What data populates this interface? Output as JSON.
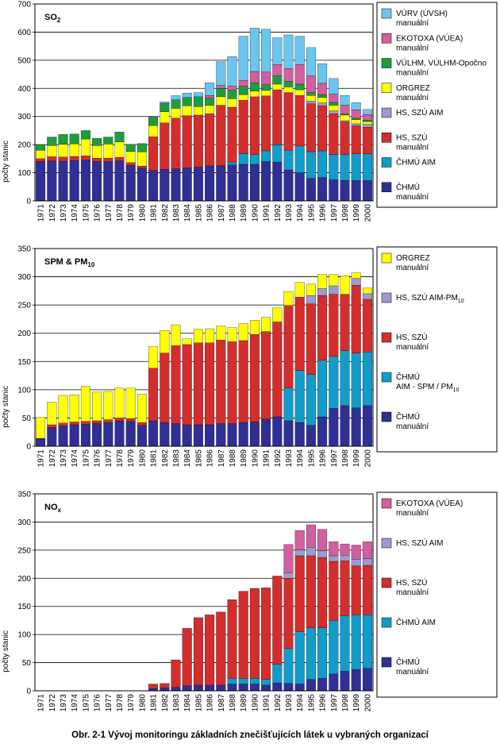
{
  "caption": "Obr. 2-1  Vývoj monitoringu základních znečišťujících látek u vybraných organizací",
  "colors": {
    "chmu_manual": "#2f2f96",
    "chmu_aim": "#119cc9",
    "hs_szu_manual": "#d42d2d",
    "hs_szu_aim": "#9b9bd0",
    "orgrez": "#ffff00",
    "vulhm": "#1f9d3d",
    "ekotoxa": "#d25f9e",
    "vurv": "#6bc6ef"
  },
  "chart_data": [
    {
      "type": "bar",
      "stacked": true,
      "title": "SO",
      "title_sub": "2",
      "ylabel": "počty stanic",
      "ylim": [
        0,
        700
      ],
      "yticks": [
        0,
        100,
        200,
        300,
        400,
        500,
        600,
        700
      ],
      "grid": true,
      "legend_position": "right",
      "categories": [
        "1971",
        "1972",
        "1973",
        "1974",
        "1975",
        "1976",
        "1977",
        "1978",
        "1979",
        "1980",
        "1981",
        "1982",
        "1983",
        "1984",
        "1985",
        "1986",
        "1987",
        "1988",
        "1989",
        "1990",
        "1991",
        "1992",
        "1993",
        "1994",
        "1995",
        "1996",
        "1997",
        "1998",
        "1999",
        "2000"
      ],
      "series": [
        {
          "key": "chmu_manual",
          "name": "ČHMÚ",
          "name2": "manuální",
          "values": [
            140,
            142,
            141,
            143,
            145,
            140,
            140,
            142,
            126,
            116,
            108,
            112,
            114,
            118,
            120,
            125,
            125,
            128,
            130,
            130,
            140,
            138,
            110,
            100,
            80,
            83,
            75,
            73,
            72,
            72
          ]
        },
        {
          "key": "chmu_aim",
          "name": "ČHMÚ  AIM",
          "name2": "",
          "values": [
            0,
            0,
            0,
            0,
            0,
            0,
            0,
            0,
            0,
            0,
            0,
            0,
            0,
            0,
            0,
            0,
            0,
            10,
            38,
            35,
            38,
            62,
            70,
            95,
            95,
            95,
            90,
            92,
            95,
            95
          ]
        },
        {
          "key": "hs_szu_manual",
          "name": "HS, SZÚ",
          "name2": "manuální",
          "values": [
            10,
            15,
            15,
            15,
            15,
            12,
            12,
            13,
            10,
            8,
            120,
            165,
            180,
            185,
            185,
            185,
            215,
            195,
            190,
            205,
            195,
            195,
            205,
            180,
            170,
            160,
            145,
            115,
            100,
            95
          ]
        },
        {
          "key": "hs_szu_aim",
          "name": "HS, SZÚ AIM",
          "name2": "",
          "values": [
            0,
            0,
            0,
            0,
            0,
            0,
            0,
            0,
            0,
            0,
            0,
            0,
            0,
            0,
            0,
            0,
            0,
            0,
            0,
            0,
            0,
            0,
            0,
            0,
            10,
            10,
            10,
            5,
            7,
            10
          ]
        },
        {
          "key": "orgrez",
          "name": "ORGREZ",
          "name2": "manuální",
          "values": [
            30,
            40,
            45,
            45,
            60,
            45,
            50,
            55,
            40,
            50,
            40,
            40,
            35,
            35,
            30,
            30,
            30,
            30,
            20,
            20,
            20,
            20,
            20,
            20,
            20,
            20,
            20,
            20,
            15,
            10
          ]
        },
        {
          "key": "vulhm",
          "name": "VÚLHM, VÚLHM-Opočno",
          "name2": "manuální",
          "values": [
            20,
            30,
            35,
            35,
            30,
            25,
            25,
            35,
            25,
            30,
            30,
            30,
            30,
            30,
            35,
            25,
            30,
            30,
            30,
            30,
            20,
            30,
            20,
            20,
            10,
            10,
            10,
            5,
            5,
            5
          ]
        },
        {
          "key": "ekotoxa",
          "name": "EKOTOXA (VÚEA)",
          "name2": "manuální",
          "values": [
            0,
            0,
            0,
            0,
            0,
            0,
            0,
            0,
            0,
            0,
            0,
            0,
            0,
            0,
            0,
            10,
            10,
            15,
            20,
            40,
            45,
            40,
            45,
            70,
            60,
            40,
            30,
            30,
            30,
            20
          ]
        },
        {
          "key": "vurv",
          "name": "VÚRV (ÚVSH)",
          "name2": "manuální",
          "values": [
            0,
            0,
            0,
            0,
            0,
            0,
            0,
            0,
            0,
            0,
            0,
            5,
            15,
            15,
            15,
            45,
            85,
            105,
            157,
            154,
            152,
            95,
            120,
            100,
            100,
            70,
            55,
            35,
            25,
            18
          ]
        }
      ],
      "legend_order": [
        "vurv",
        "ekotoxa",
        "vulhm",
        "orgrez",
        "hs_szu_aim",
        "hs_szu_manual",
        "chmu_aim",
        "chmu_manual"
      ]
    },
    {
      "type": "bar",
      "stacked": true,
      "title": "SPM & PM",
      "title_sub": "10",
      "ylabel": "počty stanic",
      "ylim": [
        0,
        350
      ],
      "yticks": [
        0,
        50,
        100,
        150,
        200,
        250,
        300,
        350
      ],
      "grid": true,
      "legend_position": "right",
      "categories": [
        "1971",
        "1972",
        "1973",
        "1974",
        "1975",
        "1976",
        "1977",
        "1978",
        "1979",
        "1980",
        "1981",
        "1982",
        "1983",
        "1984",
        "1985",
        "1986",
        "1987",
        "1988",
        "1989",
        "1990",
        "1991",
        "1992",
        "1993",
        "1994",
        "1995",
        "1996",
        "1997",
        "1998",
        "1999",
        "2000"
      ],
      "series": [
        {
          "key": "chmu_manual",
          "name": "ČHMÚ",
          "name2": "manuální",
          "values": [
            14,
            33,
            36,
            38,
            39,
            40,
            42,
            45,
            44,
            37,
            45,
            42,
            40,
            38,
            38,
            38,
            40,
            40,
            42,
            43,
            48,
            52,
            45,
            42,
            37,
            52,
            67,
            72,
            68,
            72
          ]
        },
        {
          "key": "chmu_aim",
          "name": "ČHMÚ",
          "name2": "AIM - SPM / PM",
          "name2_sub": "10",
          "values": [
            0,
            0,
            0,
            0,
            0,
            0,
            0,
            0,
            0,
            0,
            0,
            0,
            0,
            0,
            0,
            0,
            0,
            0,
            0,
            0,
            0,
            0,
            58,
            92,
            90,
            100,
            92,
            97,
            97,
            95
          ]
        },
        {
          "key": "hs_szu_manual",
          "name": "HS, SZÚ",
          "name2": "manuální",
          "values": [
            0,
            5,
            5,
            5,
            5,
            5,
            5,
            5,
            5,
            5,
            93,
            123,
            138,
            142,
            145,
            145,
            148,
            145,
            145,
            155,
            155,
            168,
            146,
            130,
            125,
            115,
            110,
            100,
            120,
            93
          ]
        },
        {
          "key": "hs_szu_aim",
          "name": "HS, SZÚ AIM-PM",
          "name2": "",
          "name_sub": "10",
          "values": [
            0,
            0,
            0,
            0,
            0,
            0,
            0,
            0,
            0,
            0,
            0,
            0,
            0,
            0,
            0,
            0,
            0,
            0,
            0,
            0,
            0,
            0,
            0,
            0,
            15,
            12,
            15,
            0,
            12,
            10
          ]
        },
        {
          "key": "orgrez",
          "name": "ORGREZ",
          "name2": "manuální",
          "values": [
            37,
            40,
            49,
            48,
            62,
            51,
            50,
            53,
            54,
            50,
            38,
            40,
            37,
            10,
            24,
            25,
            25,
            25,
            30,
            25,
            25,
            25,
            25,
            26,
            20,
            25,
            20,
            33,
            10,
            10
          ]
        }
      ],
      "legend_order": [
        "orgrez",
        "hs_szu_aim",
        "hs_szu_manual",
        "chmu_aim",
        "chmu_manual"
      ]
    },
    {
      "type": "bar",
      "stacked": true,
      "title": "NO",
      "title_sub": "x",
      "ylabel": "počty stanic",
      "ylim": [
        0,
        350
      ],
      "yticks": [
        0,
        50,
        100,
        150,
        200,
        250,
        300,
        350
      ],
      "grid": true,
      "legend_position": "right",
      "categories": [
        "1971",
        "1972",
        "1973",
        "1974",
        "1975",
        "1976",
        "1977",
        "1978",
        "1979",
        "1980",
        "1981",
        "1982",
        "1983",
        "1984",
        "1985",
        "1986",
        "1987",
        "1988",
        "1989",
        "1990",
        "1991",
        "1992",
        "1993",
        "1994",
        "1995",
        "1996",
        "1997",
        "1998",
        "1999",
        "2000"
      ],
      "series": [
        {
          "key": "chmu_manual",
          "name": "ČHMÚ",
          "name2": "manuální",
          "values": [
            0,
            0,
            0,
            0,
            0,
            0,
            0,
            0,
            0,
            0,
            4,
            5,
            6,
            9,
            10,
            10,
            10,
            12,
            12,
            12,
            10,
            14,
            13,
            12,
            20,
            22,
            30,
            35,
            38,
            40
          ]
        },
        {
          "key": "chmu_aim",
          "name": "ČHMÚ  AIM",
          "name2": "",
          "values": [
            0,
            0,
            0,
            0,
            0,
            0,
            0,
            0,
            0,
            0,
            0,
            0,
            0,
            0,
            0,
            0,
            0,
            10,
            10,
            10,
            10,
            33,
            62,
            93,
            92,
            90,
            95,
            98,
            97,
            95
          ]
        },
        {
          "key": "hs_szu_manual",
          "name": "HS, SZÚ",
          "name2": "manuální",
          "values": [
            0,
            0,
            0,
            0,
            0,
            0,
            0,
            0,
            0,
            0,
            8,
            8,
            49,
            102,
            120,
            125,
            130,
            140,
            155,
            160,
            163,
            157,
            125,
            135,
            128,
            125,
            105,
            98,
            87,
            88
          ]
        },
        {
          "key": "hs_szu_aim",
          "name": "HS, SZÚ AIM",
          "name2": "",
          "values": [
            0,
            0,
            0,
            0,
            0,
            0,
            0,
            0,
            0,
            0,
            0,
            0,
            0,
            0,
            0,
            0,
            0,
            0,
            0,
            0,
            0,
            0,
            10,
            10,
            15,
            12,
            10,
            10,
            12,
            12
          ]
        },
        {
          "key": "ekotoxa",
          "name": "EKOTOXA (VÚEA)",
          "name2": "manuální",
          "values": [
            0,
            0,
            0,
            0,
            0,
            0,
            0,
            0,
            0,
            0,
            0,
            0,
            0,
            0,
            0,
            0,
            0,
            0,
            0,
            0,
            0,
            0,
            50,
            35,
            40,
            38,
            25,
            20,
            25,
            30
          ]
        }
      ],
      "legend_order": [
        "ekotoxa",
        "hs_szu_aim",
        "hs_szu_manual",
        "chmu_aim",
        "chmu_manual"
      ]
    }
  ]
}
